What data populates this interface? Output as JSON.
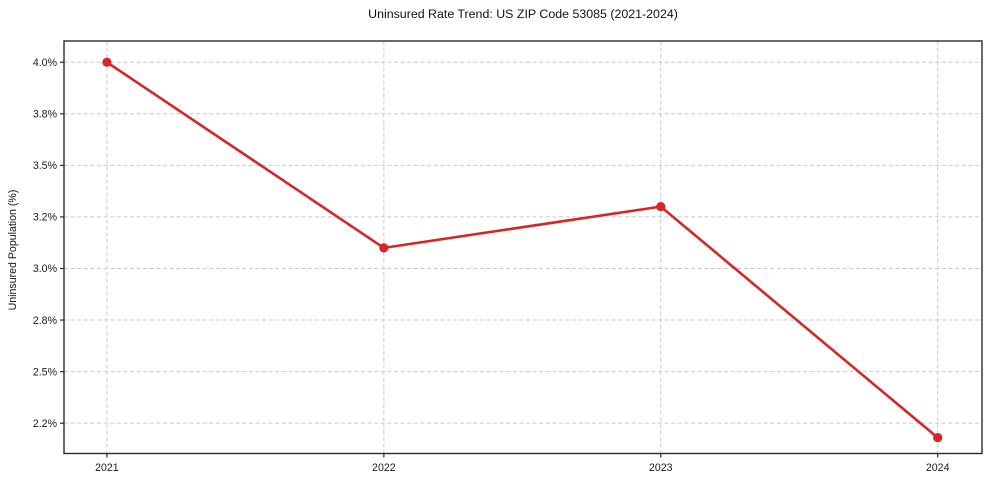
{
  "chart_data": {
    "type": "line",
    "title": "Uninsured Rate Trend: US ZIP Code 53085 (2021-2024)",
    "xlabel": "",
    "ylabel": "Uninsured Population (%)",
    "x": [
      2021,
      2022,
      2023,
      2024
    ],
    "values": [
      4.0,
      3.1,
      3.3,
      2.18
    ],
    "x_tick_labels": [
      "2021",
      "2022",
      "2023",
      "2024"
    ],
    "y_ticks": [
      {
        "value": 2.25,
        "label": "2.2%"
      },
      {
        "value": 2.5,
        "label": "2.5%"
      },
      {
        "value": 2.75,
        "label": "2.8%"
      },
      {
        "value": 3.0,
        "label": "3.0%"
      },
      {
        "value": 3.25,
        "label": "3.2%"
      },
      {
        "value": 3.5,
        "label": "3.5%"
      },
      {
        "value": 3.75,
        "label": "3.8%"
      },
      {
        "value": 4.0,
        "label": "4.0%"
      }
    ],
    "xlim": [
      2020.845,
      2024.16
    ],
    "ylim": [
      2.103,
      4.103
    ],
    "grid": true,
    "legend": false,
    "line_color": "#d62728",
    "marker": "circle"
  }
}
